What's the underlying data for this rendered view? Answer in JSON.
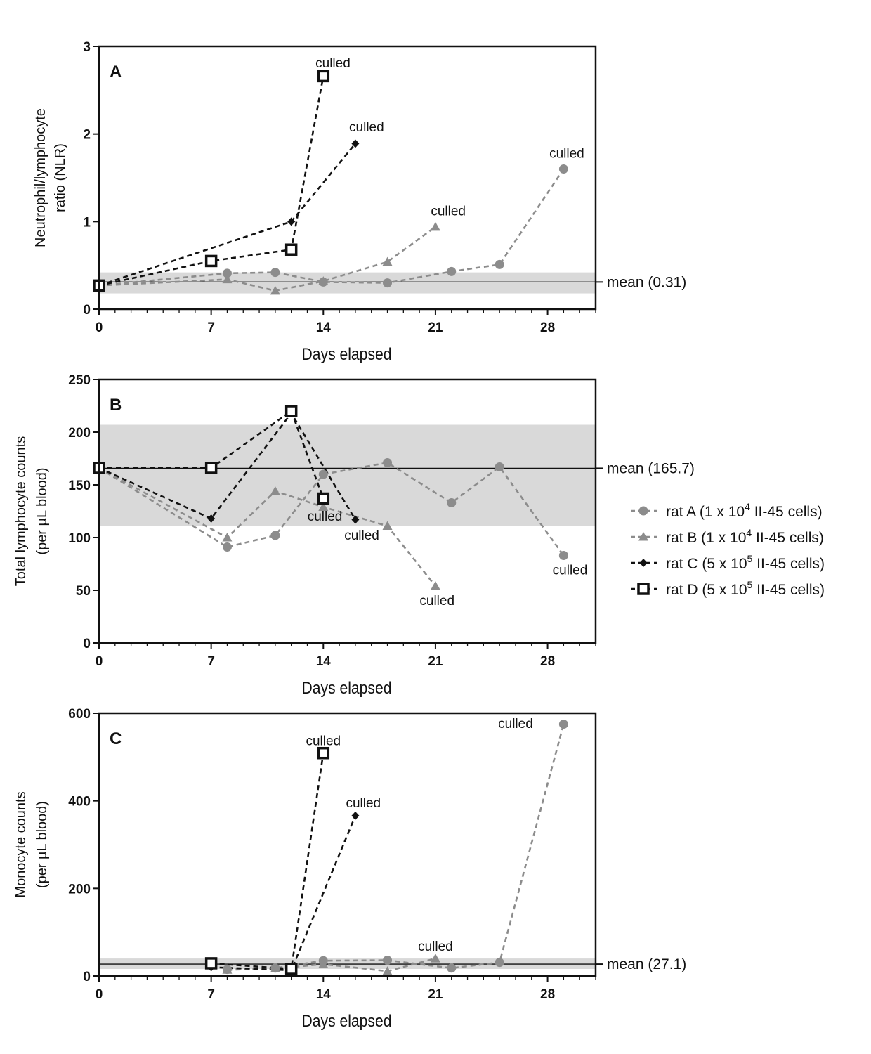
{
  "chart_data": [
    {
      "type": "line",
      "panel": "A",
      "ylabel": "Neutrophil/lymphocyte ratio (NLR)",
      "ylabel_lines": [
        "Neutrophil/lymphocyte",
        "ratio (NLR)"
      ],
      "xlabel": "Days elapsed",
      "xlim": [
        0,
        31
      ],
      "ylim": [
        0,
        3
      ],
      "xticks": [
        0,
        7,
        14,
        21,
        28
      ],
      "yticks": [
        0,
        1,
        2,
        3
      ],
      "mean": {
        "value": 0.31,
        "label": "mean (0.31)",
        "band": [
          0.18,
          0.42
        ]
      },
      "series": [
        {
          "name": "rat A",
          "x": [
            0,
            8,
            11,
            14,
            18,
            22,
            25,
            29
          ],
          "y": [
            0.27,
            0.41,
            0.42,
            0.31,
            0.3,
            0.43,
            0.51,
            1.6
          ]
        },
        {
          "name": "rat B",
          "x": [
            0,
            8,
            11,
            14,
            18,
            21
          ],
          "y": [
            0.27,
            0.34,
            0.21,
            0.32,
            0.54,
            0.94
          ]
        },
        {
          "name": "rat C",
          "x": [
            0,
            12,
            16
          ],
          "y": [
            0.27,
            1.0,
            1.89
          ]
        },
        {
          "name": "rat D",
          "x": [
            0,
            7,
            12,
            14
          ],
          "y": [
            0.27,
            0.55,
            0.68,
            2.66
          ]
        }
      ],
      "annotations": [
        {
          "text": "culled",
          "x": 14.6,
          "y": 2.76
        },
        {
          "text": "culled",
          "x": 16.7,
          "y": 2.03
        },
        {
          "text": "culled",
          "x": 21.8,
          "y": 1.07
        },
        {
          "text": "culled",
          "x": 29.2,
          "y": 1.73
        }
      ]
    },
    {
      "type": "line",
      "panel": "B",
      "ylabel": "Total lymphocyte counts (per µL blood)",
      "ylabel_lines": [
        "Total lymphocyte counts",
        "(per µL blood)"
      ],
      "xlabel": "Days elapsed",
      "xlim": [
        0,
        31
      ],
      "ylim": [
        0,
        250
      ],
      "xticks": [
        0,
        7,
        14,
        21,
        28
      ],
      "yticks": [
        0,
        50,
        100,
        150,
        200,
        250
      ],
      "mean": {
        "value": 165.7,
        "label": "mean (165.7)",
        "band": [
          111,
          207
        ]
      },
      "series": [
        {
          "name": "rat A",
          "x": [
            0,
            8,
            11,
            14,
            18,
            22,
            25,
            29
          ],
          "y": [
            166,
            91,
            102,
            160,
            171,
            133,
            167,
            83
          ]
        },
        {
          "name": "rat B",
          "x": [
            0,
            8,
            11,
            14,
            18,
            21
          ],
          "y": [
            166,
            100,
            144,
            129,
            111,
            54
          ]
        },
        {
          "name": "rat C",
          "x": [
            0,
            7,
            12,
            16
          ],
          "y": [
            166,
            118,
            218,
            117
          ]
        },
        {
          "name": "rat D",
          "x": [
            0,
            7,
            12,
            14
          ],
          "y": [
            166,
            166,
            220,
            137
          ]
        }
      ],
      "annotations": [
        {
          "text": "culled",
          "x": 14.1,
          "y": 116
        },
        {
          "text": "culled",
          "x": 16.4,
          "y": 98
        },
        {
          "text": "culled",
          "x": 21.1,
          "y": 36
        },
        {
          "text": "culled",
          "x": 29.4,
          "y": 65
        }
      ]
    },
    {
      "type": "line",
      "panel": "C",
      "ylabel": "Monocyte counts (per µL blood)",
      "ylabel_lines": [
        "Monocyte counts",
        "(per µL blood)"
      ],
      "xlabel": "Days elapsed",
      "xlim": [
        0,
        31
      ],
      "ylim": [
        0,
        600
      ],
      "xticks": [
        0,
        7,
        14,
        21,
        28
      ],
      "yticks": [
        0,
        200,
        400,
        600
      ],
      "mean": {
        "value": 27.1,
        "label": "mean (27.1)",
        "band": [
          16,
          40
        ]
      },
      "series": [
        {
          "name": "rat A",
          "x": [
            8,
            11,
            14,
            18,
            22,
            25,
            29
          ],
          "y": [
            15,
            18,
            35,
            36,
            18,
            31,
            575
          ]
        },
        {
          "name": "rat B",
          "x": [
            8,
            11,
            14,
            18,
            21
          ],
          "y": [
            14,
            17,
            27,
            11,
            40
          ]
        },
        {
          "name": "rat C",
          "x": [
            7,
            12,
            16
          ],
          "y": [
            20,
            13,
            366
          ]
        },
        {
          "name": "rat D",
          "x": [
            7,
            12,
            14
          ],
          "y": [
            29,
            16,
            509
          ]
        }
      ],
      "annotations": [
        {
          "text": "culled",
          "x": 14.0,
          "y": 527
        },
        {
          "text": "culled",
          "x": 16.5,
          "y": 385
        },
        {
          "text": "culled",
          "x": 21.0,
          "y": 58
        },
        {
          "text": "culled",
          "x": 26.0,
          "y": 566
        }
      ]
    }
  ],
  "legend": {
    "entries": [
      {
        "series": "rat A",
        "prefix": "rat A (1 x 10",
        "sup": "4",
        "suffix": " II-45 cells)"
      },
      {
        "series": "rat B",
        "prefix": "rat B (1 x 10",
        "sup": "4",
        "suffix": " II-45 cells)"
      },
      {
        "series": "rat C",
        "prefix": "rat C (5 x 10",
        "sup": "5",
        "suffix": " II-45 cells)"
      },
      {
        "series": "rat D",
        "prefix": "rat D (5 x 10",
        "sup": "5",
        "suffix": " II-45 cells)"
      }
    ]
  },
  "styles": {
    "grey": "#8c8c8c",
    "black": "#111111",
    "band": "#d9d9d9"
  },
  "markers": {
    "rat A": "circle",
    "rat B": "triangle",
    "rat C": "diamond",
    "rat D": "open-square"
  }
}
